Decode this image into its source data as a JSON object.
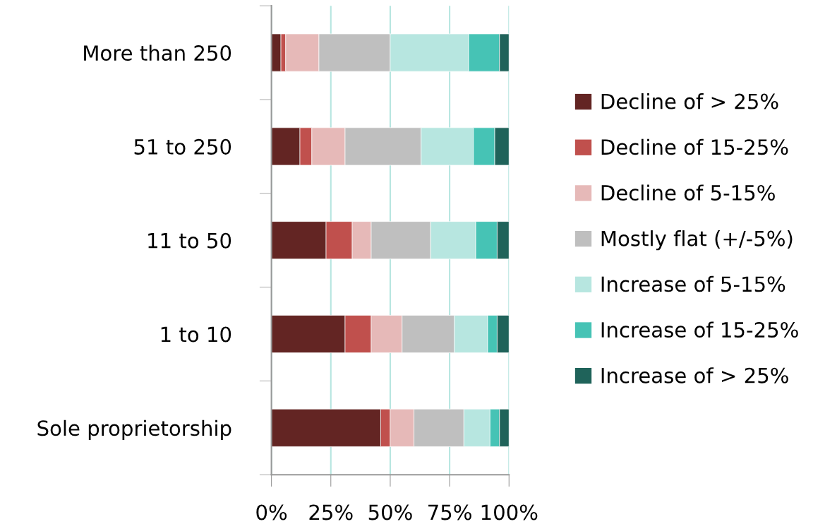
{
  "chart_data": {
    "type": "bar",
    "orientation": "horizontal",
    "stacked": true,
    "categories": [
      "More than 250",
      "51 to 250",
      "11 to 50",
      "1 to 10",
      "Sole proprietorship"
    ],
    "series": [
      {
        "name": "Decline of > 25%",
        "color": "#632523",
        "values": [
          4,
          12,
          23,
          31,
          46
        ]
      },
      {
        "name": "Decline of 15-25%",
        "color": "#c0504d",
        "values": [
          2,
          5,
          11,
          11,
          4
        ]
      },
      {
        "name": "Decline of 5-15%",
        "color": "#e6b9b8",
        "values": [
          14,
          14,
          8,
          13,
          10
        ]
      },
      {
        "name": "Mostly flat (+/-5%)",
        "color": "#bfbfbf",
        "values": [
          30,
          32,
          25,
          22,
          21
        ]
      },
      {
        "name": "Increase of 5-15%",
        "color": "#b7e6e0",
        "values": [
          33,
          22,
          19,
          14,
          11
        ]
      },
      {
        "name": "Increase of 15-25%",
        "color": "#46c3b5",
        "values": [
          13,
          9,
          9,
          4,
          4
        ]
      },
      {
        "name": "Increase of > 25%",
        "color": "#1f635a",
        "values": [
          4,
          6,
          5,
          5,
          4
        ]
      }
    ],
    "xlim": [
      0,
      100
    ],
    "xticks": [
      {
        "value": 0,
        "label": "0%"
      },
      {
        "value": 25,
        "label": "25%"
      },
      {
        "value": 50,
        "label": "50%"
      },
      {
        "value": 75,
        "label": "75%"
      },
      {
        "value": 100,
        "label": "100%"
      }
    ],
    "grid": "x",
    "legend": "right"
  }
}
